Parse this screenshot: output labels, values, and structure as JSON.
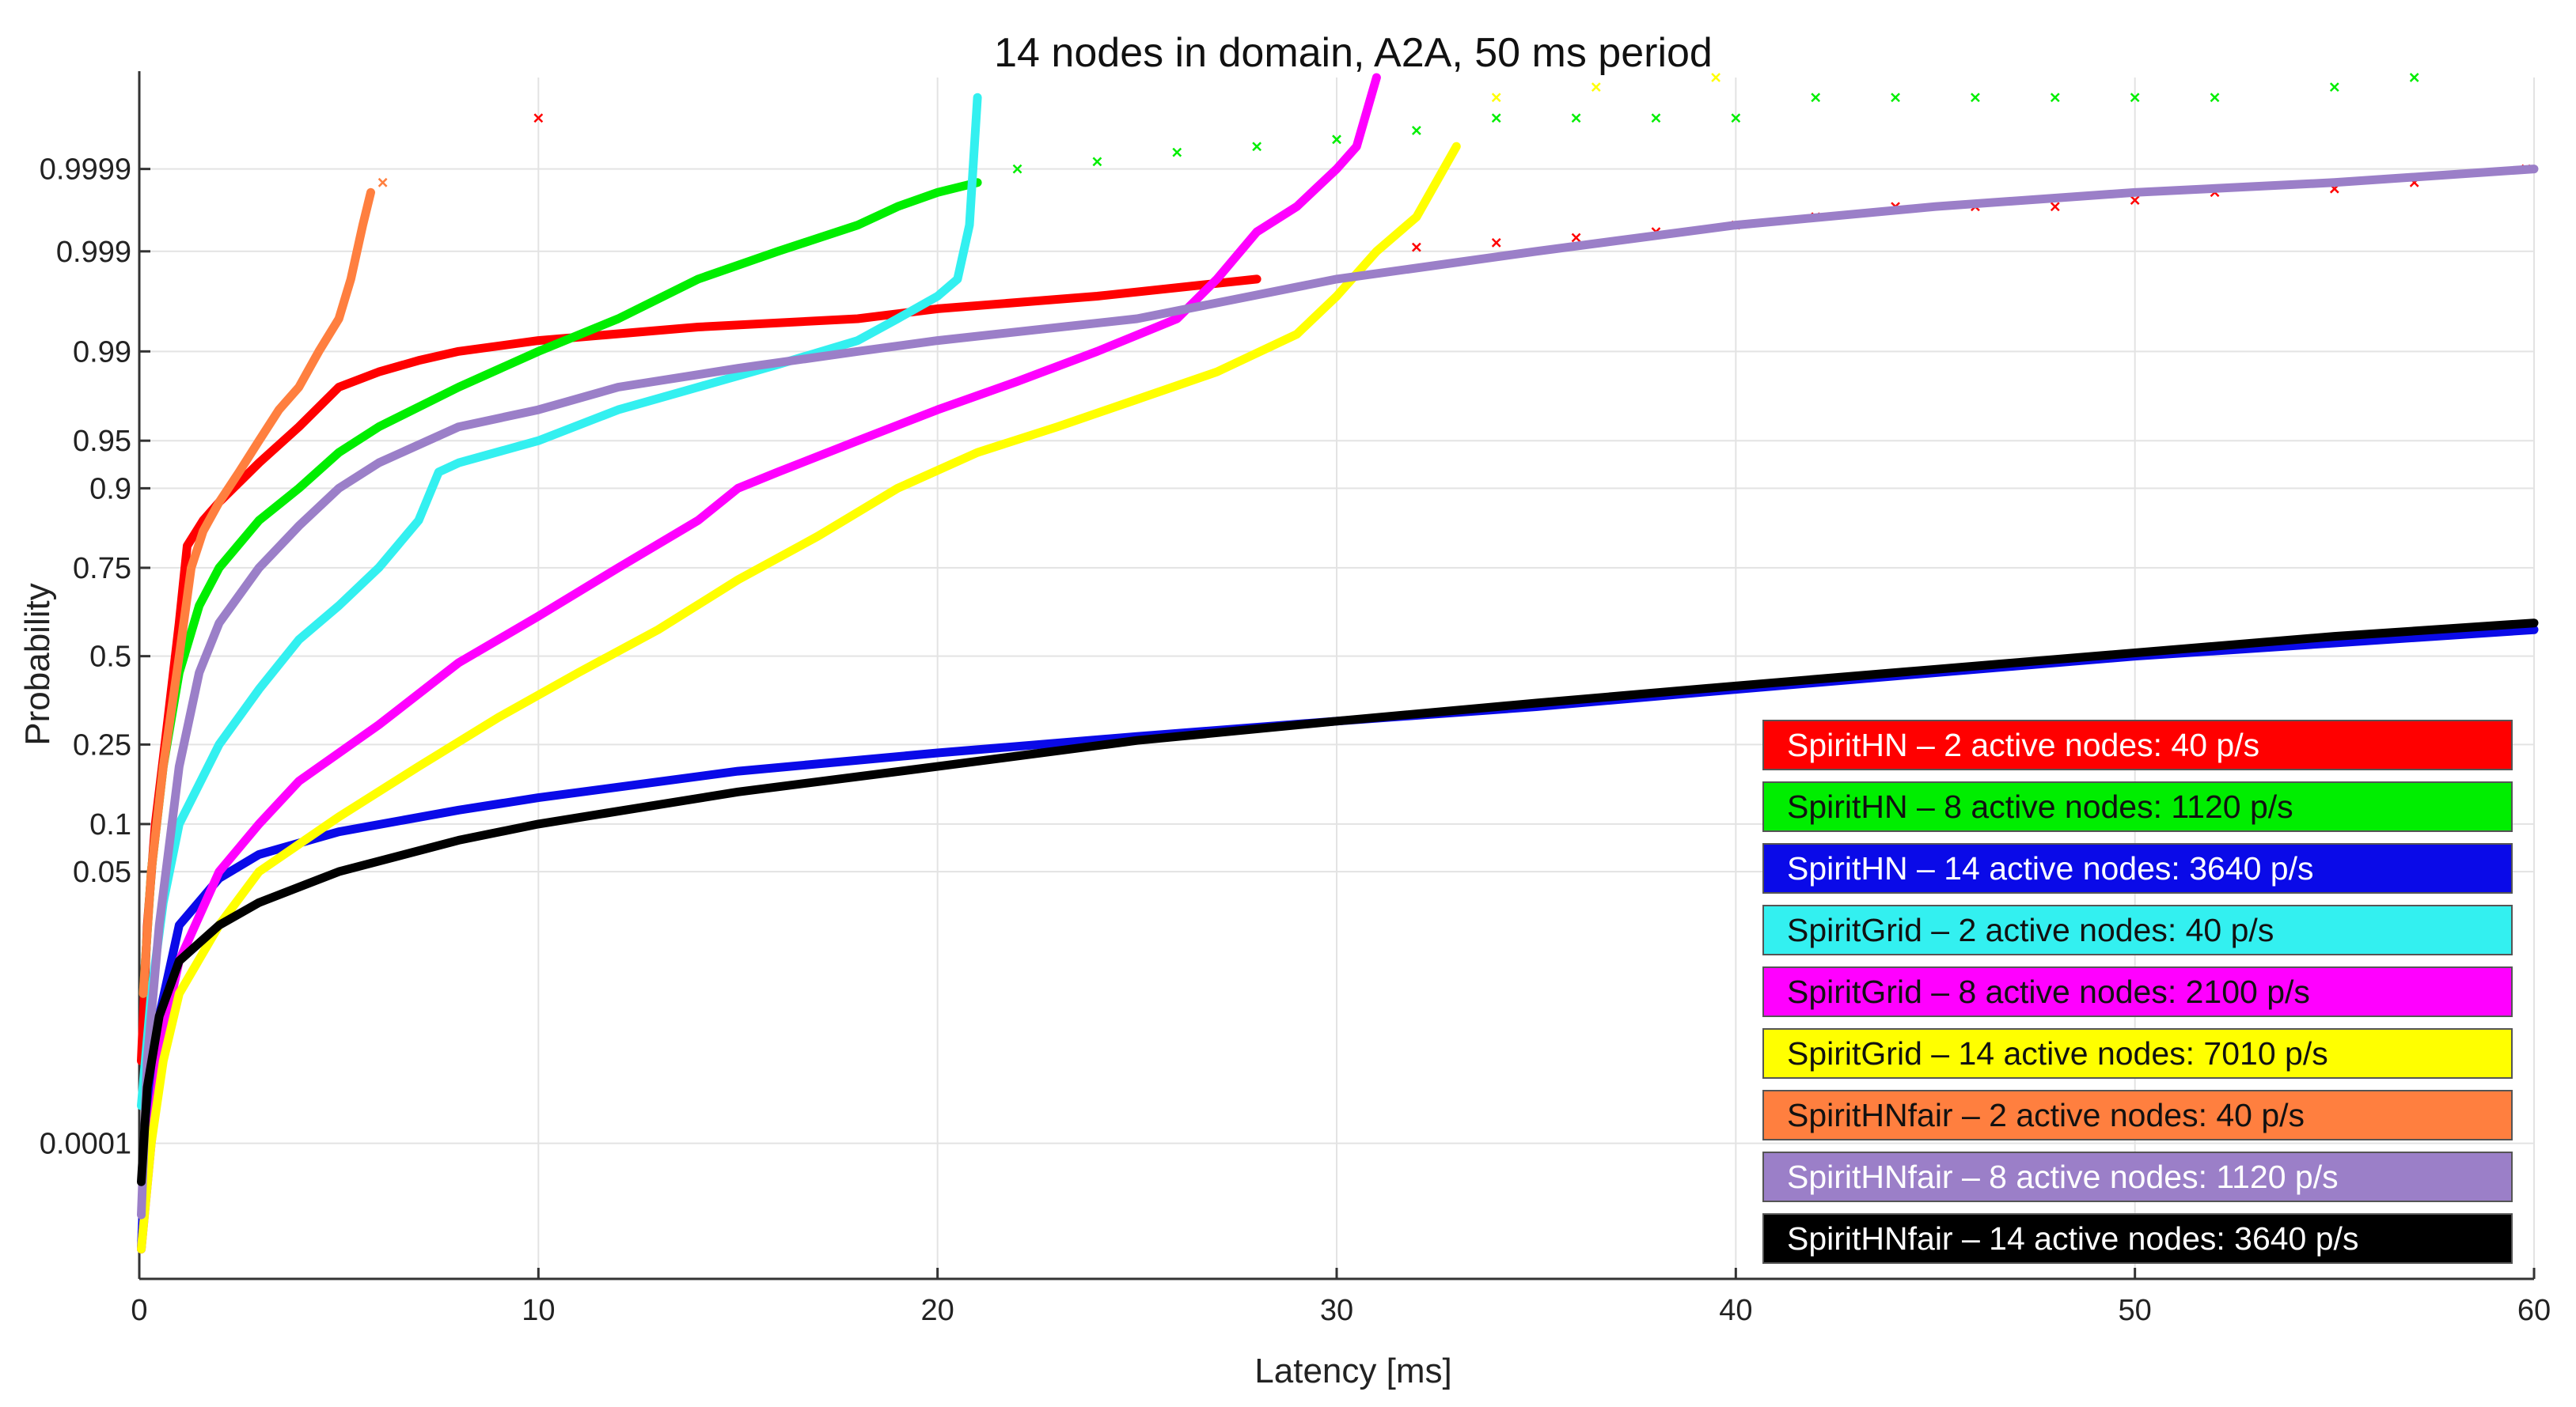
{
  "chart_data": {
    "type": "line",
    "title": "14 nodes in domain, A2A, 50 ms period",
    "xlabel": "Latency [ms]",
    "ylabel": "Probability",
    "xlim": [
      0,
      60
    ],
    "x_ticks": [
      0,
      10,
      20,
      30,
      40,
      50,
      60
    ],
    "y_scale": "probit",
    "ylim": [
      1e-06,
      0.999995
    ],
    "y_ticks": [
      0.0001,
      0.05,
      0.1,
      0.25,
      0.5,
      0.75,
      0.9,
      0.95,
      0.99,
      0.999,
      0.9999
    ],
    "grid": true,
    "legend_position": "bottom-right",
    "series": [
      {
        "name": "SpiritHN – 2 active nodes: 40 p/s",
        "color": "#ff0000",
        "text_color": "#ffffff",
        "x": [
          0.05,
          0.2,
          0.4,
          0.7,
          1.0,
          1.2,
          1.6,
          2.0,
          3.0,
          4.0,
          5.0,
          6.0,
          7.0,
          8.0,
          10.0,
          14.0,
          18.0,
          20.0,
          24.0,
          28.0
        ],
        "y": [
          0.001,
          0.02,
          0.1,
          0.3,
          0.6,
          0.8,
          0.85,
          0.88,
          0.93,
          0.96,
          0.98,
          0.985,
          0.988,
          0.99,
          0.992,
          0.994,
          0.995,
          0.996,
          0.997,
          0.998
        ],
        "outliers_x": [
          32,
          34,
          36,
          38,
          40,
          42,
          44,
          46,
          48,
          50,
          52,
          55,
          57,
          59.8,
          10.0
        ],
        "outliers_y": [
          0.9991,
          0.9992,
          0.9993,
          0.9994,
          0.9995,
          0.9996,
          0.9997,
          0.9997,
          0.9997,
          0.99975,
          0.9998,
          0.99982,
          0.99985,
          0.9999,
          0.99998
        ]
      },
      {
        "name": "SpiritHN – 8 active nodes: 1120 p/s",
        "color": "#00ee00",
        "text_color": "#111111",
        "x": [
          0.1,
          0.3,
          0.6,
          1.0,
          1.5,
          2.0,
          3.0,
          4.0,
          5.0,
          6.0,
          8.0,
          10.0,
          12.0,
          14.0,
          16.0,
          18.0,
          19.0,
          20.0,
          21.0
        ],
        "y": [
          0.005,
          0.05,
          0.2,
          0.45,
          0.65,
          0.75,
          0.85,
          0.9,
          0.94,
          0.96,
          0.98,
          0.99,
          0.995,
          0.998,
          0.999,
          0.9995,
          0.9997,
          0.9998,
          0.99985
        ],
        "outliers_x": [
          22,
          24,
          26,
          28,
          30,
          32,
          34,
          36,
          38,
          40,
          42,
          44,
          46,
          48,
          50,
          52,
          55,
          57
        ],
        "outliers_y": [
          0.9999,
          0.99992,
          0.99994,
          0.99995,
          0.99996,
          0.99997,
          0.99998,
          0.99998,
          0.99998,
          0.99998,
          0.99999,
          0.99999,
          0.99999,
          0.99999,
          0.99999,
          0.99999,
          0.999993,
          0.999995
        ]
      },
      {
        "name": "SpiritHN – 14 active nodes: 3640 p/s",
        "color": "#0a0ae8",
        "text_color": "#ffffff",
        "x": [
          0.05,
          0.2,
          0.5,
          1.0,
          2.0,
          3.0,
          5.0,
          8.0,
          10.0,
          15.0,
          20.0,
          25.0,
          30.0,
          35.0,
          40.0,
          45.0,
          50.0,
          55.0,
          60.0
        ],
        "y": [
          3e-06,
          0.0003,
          0.003,
          0.02,
          0.045,
          0.065,
          0.09,
          0.12,
          0.14,
          0.19,
          0.23,
          0.27,
          0.31,
          0.35,
          0.4,
          0.45,
          0.5,
          0.54,
          0.58
        ]
      },
      {
        "name": "SpiritGrid – 2 active nodes: 40 p/s",
        "color": "#33f0f0",
        "text_color": "#111111",
        "x": [
          0.05,
          0.3,
          0.6,
          1.0,
          2.0,
          3.0,
          4.0,
          5.0,
          6.0,
          7.0,
          7.5,
          8.0,
          10.0,
          12.0,
          14.0,
          16.0,
          18.0,
          19.0,
          20.0,
          20.5,
          20.8,
          21.0
        ],
        "y": [
          0.0003,
          0.005,
          0.03,
          0.1,
          0.25,
          0.4,
          0.55,
          0.65,
          0.75,
          0.85,
          0.92,
          0.93,
          0.95,
          0.97,
          0.98,
          0.987,
          0.992,
          0.995,
          0.997,
          0.998,
          0.9995,
          0.99999
        ]
      },
      {
        "name": "SpiritGrid – 8 active nodes: 2100 p/s",
        "color": "#ff00ff",
        "text_color": "#111111",
        "x": [
          0.05,
          0.3,
          0.6,
          1.0,
          2.0,
          3.0,
          4.0,
          6.0,
          8.0,
          10.0,
          12.0,
          14.0,
          15.0,
          16.0,
          18.0,
          20.0,
          22.0,
          24.0,
          26.0,
          27.0,
          28.0,
          29.0,
          30.0,
          30.5,
          31.0
        ],
        "y": [
          3e-06,
          0.0001,
          0.002,
          0.01,
          0.05,
          0.1,
          0.17,
          0.3,
          0.48,
          0.62,
          0.75,
          0.85,
          0.9,
          0.92,
          0.95,
          0.97,
          0.982,
          0.99,
          0.995,
          0.998,
          0.9994,
          0.9997,
          0.9999,
          0.99995,
          0.999995
        ]
      },
      {
        "name": "SpiritGrid – 14 active nodes: 7010 p/s",
        "color": "#ffff00",
        "text_color": "#111111",
        "x": [
          0.05,
          0.3,
          0.6,
          1.0,
          2.0,
          3.0,
          5.0,
          7.0,
          9.0,
          11.0,
          13.0,
          15.0,
          17.0,
          19.0,
          21.0,
          23.0,
          25.0,
          27.0,
          29.0,
          30.0,
          31.0,
          32.0,
          33.0
        ],
        "y": [
          3e-06,
          0.0001,
          0.001,
          0.005,
          0.02,
          0.05,
          0.11,
          0.2,
          0.32,
          0.45,
          0.58,
          0.72,
          0.82,
          0.9,
          0.94,
          0.96,
          0.975,
          0.985,
          0.993,
          0.997,
          0.999,
          0.9996,
          0.99995
        ],
        "outliers_x": [
          34,
          36.5,
          39.5
        ],
        "outliers_y": [
          0.99999,
          0.999993,
          0.999995
        ]
      },
      {
        "name": "SpiritHNfair – 2 active nodes: 40 p/s",
        "color": "#ff7f3f",
        "text_color": "#111111",
        "x": [
          0.1,
          0.3,
          0.6,
          1.0,
          1.3,
          1.6,
          2.0,
          2.5,
          3.0,
          3.5,
          4.0,
          4.5,
          5.0,
          5.3,
          5.6,
          5.8
        ],
        "y": [
          0.005,
          0.05,
          0.2,
          0.5,
          0.75,
          0.83,
          0.88,
          0.92,
          0.95,
          0.97,
          0.98,
          0.99,
          0.995,
          0.998,
          0.9995,
          0.9998
        ],
        "outliers_x": [
          6.1
        ],
        "outliers_y": [
          0.99985
        ]
      },
      {
        "name": "SpiritHNfair – 8 active nodes: 1120 p/s",
        "color": "#9b7fc8",
        "text_color": "#ffffff",
        "x": [
          0.05,
          0.2,
          0.5,
          1.0,
          1.5,
          2.0,
          3.0,
          4.0,
          5.0,
          6.0,
          8.0,
          10.0,
          12.0,
          15.0,
          18.0,
          20.0,
          25.0,
          30.0,
          35.0,
          40.0,
          45.0,
          50.0,
          55.0,
          60.0
        ],
        "y": [
          1e-05,
          0.001,
          0.02,
          0.2,
          0.45,
          0.6,
          0.75,
          0.84,
          0.9,
          0.93,
          0.96,
          0.97,
          0.98,
          0.986,
          0.99,
          0.992,
          0.995,
          0.998,
          0.999,
          0.9995,
          0.9997,
          0.9998,
          0.99985,
          0.9999
        ]
      },
      {
        "name": "SpiritHNfair – 14 active nodes: 3640 p/s",
        "color": "#000000",
        "text_color": "#ffffff",
        "x": [
          0.05,
          0.2,
          0.5,
          1.0,
          2.0,
          3.0,
          5.0,
          8.0,
          10.0,
          15.0,
          20.0,
          25.0,
          30.0,
          35.0,
          40.0,
          45.0,
          50.0,
          55.0,
          60.0
        ],
        "y": [
          3e-05,
          0.0005,
          0.003,
          0.01,
          0.02,
          0.03,
          0.05,
          0.08,
          0.1,
          0.15,
          0.2,
          0.26,
          0.31,
          0.36,
          0.41,
          0.46,
          0.51,
          0.56,
          0.6
        ]
      }
    ]
  }
}
